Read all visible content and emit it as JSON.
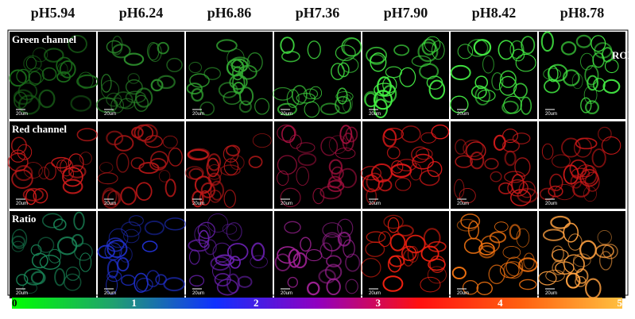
{
  "columns": [
    "pH5.94",
    "pH6.24",
    "pH6.86",
    "pH7.36",
    "pH7.90",
    "pH8.42",
    "pH8.78"
  ],
  "rows": [
    "Green channel",
    "Red channel",
    "Ratio"
  ],
  "scale_bar_label": "20um",
  "roi_label": "ROI",
  "colorbar": {
    "range": [
      0,
      5
    ],
    "ticks": [
      0,
      1,
      2,
      3,
      4,
      5
    ],
    "colors": [
      "#00ff00",
      "#20a070",
      "#1030ff",
      "#9000c0",
      "#ff1010",
      "#ff6010",
      "#ffc040"
    ]
  }
}
